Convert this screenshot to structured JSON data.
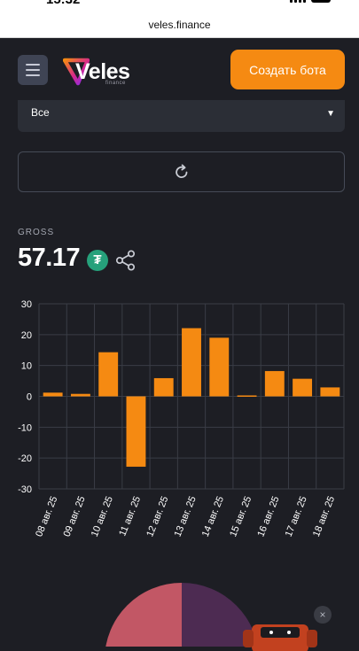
{
  "status": {
    "time": "15:32"
  },
  "browser": {
    "url": "veles.finance"
  },
  "header": {
    "logo_text": "Veles",
    "logo_sub": "finance",
    "create_bot_label": "Создать бота"
  },
  "filter": {
    "selected": "Все",
    "caret": "▼"
  },
  "gross": {
    "label": "GROSS",
    "value": "57.17",
    "currency_icon": "tether-usdt-icon",
    "currency_symbol": "₮"
  },
  "chart_data": {
    "type": "bar",
    "title": "",
    "xlabel": "",
    "ylabel": "",
    "categories": [
      "08 авг. 25",
      "09 авг. 25",
      "10 авг. 25",
      "11 авг. 25",
      "12 авг. 25",
      "13 авг. 25",
      "14 авг. 25",
      "15 авг. 25",
      "16 авг. 25",
      "17 авг. 25",
      "18 авг. 25"
    ],
    "values": [
      1.2,
      0.8,
      14.3,
      -22.8,
      5.9,
      22.1,
      19.0,
      0.3,
      8.2,
      5.7,
      2.9
    ],
    "ylim": [
      -30,
      30
    ],
    "yticks": [
      "30",
      "20",
      "10",
      "0",
      "-10",
      "-20",
      "-30"
    ],
    "grid": true,
    "bar_color": "#f58a12"
  },
  "pie_colors": [
    "#c25765",
    "#4d2b52"
  ],
  "promo": {
    "close_label": "×"
  }
}
